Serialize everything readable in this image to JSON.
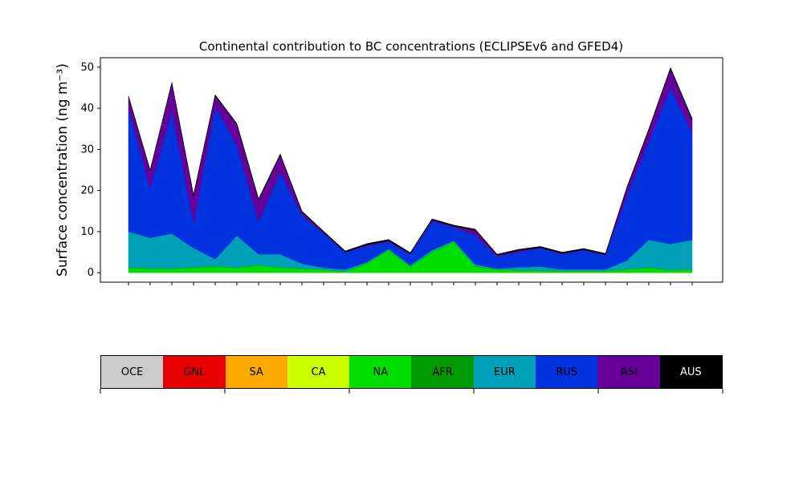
{
  "chart_data": {
    "type": "stacked_area",
    "title": "Continental contribution to BC concentrations (ECLIPSEv6 and GFED4)",
    "ylabel": "Surface concentration (ng m⁻³)",
    "categories": [
      null,
      null,
      null,
      null,
      null,
      null,
      null,
      null,
      null,
      null,
      null,
      null,
      null,
      null,
      null,
      null,
      null,
      null,
      null,
      null,
      null,
      null,
      null,
      null,
      null,
      null,
      null
    ],
    "ylim": [
      -2.3,
      52.3
    ],
    "yticks": [
      0,
      10,
      20,
      30,
      40,
      50
    ],
    "series": [
      {
        "name": "OCE",
        "color": "#cccccc",
        "values": [
          0,
          0,
          0,
          0,
          0,
          0,
          0,
          0,
          0,
          0,
          0,
          0,
          0,
          0,
          0,
          0,
          0,
          0,
          0,
          0,
          0,
          0,
          0,
          0,
          0,
          0,
          0
        ]
      },
      {
        "name": "GNL",
        "color": "#e60000",
        "values": [
          0,
          0,
          0,
          0,
          0,
          0,
          0,
          0,
          0,
          0,
          0,
          0,
          0,
          0,
          0,
          0,
          0,
          0,
          0,
          0,
          0,
          0,
          0,
          0,
          0,
          0,
          0
        ]
      },
      {
        "name": "SA",
        "color": "#ffaa00",
        "values": [
          0,
          0,
          0,
          0,
          0,
          0,
          0,
          0,
          0,
          0,
          0,
          0,
          0,
          0,
          0,
          0,
          0,
          0,
          0,
          0,
          0,
          0,
          0,
          0,
          0,
          0,
          0
        ]
      },
      {
        "name": "CA",
        "color": "#ccff00",
        "values": [
          0,
          0,
          0,
          0,
          0,
          0,
          0,
          0,
          0,
          0,
          0,
          0,
          0,
          0,
          0,
          0,
          0,
          0,
          0,
          0,
          0,
          0,
          0,
          0,
          0,
          0,
          0
        ]
      },
      {
        "name": "NA",
        "color": "#00dd00",
        "values": [
          1.2,
          1,
          1,
          1.2,
          1.5,
          1.2,
          1.8,
          1.2,
          1,
          0.7,
          0.3,
          2.3,
          5.5,
          1.5,
          5,
          7.5,
          1.5,
          0.8,
          0.6,
          0.5,
          0.4,
          0.4,
          0.4,
          0.8,
          1.2,
          0.6,
          0.7
        ]
      },
      {
        "name": "AFR",
        "color": "#009900",
        "values": [
          0.1,
          0.1,
          0.1,
          0.1,
          0.1,
          0.1,
          0.1,
          0.1,
          0.1,
          0.1,
          0.1,
          0.1,
          0.1,
          0.1,
          0.1,
          0.1,
          0.1,
          0.1,
          0.1,
          0.1,
          0.1,
          0.1,
          0.1,
          0.1,
          0.1,
          0.1,
          0.1
        ]
      },
      {
        "name": "EUR",
        "color": "#00a0b8",
        "values": [
          8.7,
          7.4,
          8.4,
          4.7,
          1.7,
          7.7,
          2.6,
          3.2,
          1.1,
          0.4,
          0.4,
          0.2,
          0.2,
          0.2,
          0.4,
          0.2,
          0.4,
          0.1,
          0.6,
          0.9,
          0.3,
          0.3,
          0.3,
          2.1,
          6.7,
          6.3,
          7.2
        ]
      },
      {
        "name": "RUS",
        "color": "#0033dd",
        "values": [
          30,
          12,
          30,
          6,
          37.2,
          22,
          8,
          20,
          11.8,
          8.3,
          4.2,
          3.9,
          1.7,
          2.7,
          7,
          3.3,
          7,
          3,
          3.7,
          4.5,
          3.7,
          4.7,
          3.5,
          16,
          24,
          38,
          26
        ]
      },
      {
        "name": "ASI",
        "color": "#660099",
        "values": [
          2.7,
          4.2,
          6.5,
          6.7,
          2.5,
          5,
          5.2,
          4.1,
          0.7,
          0.3,
          0,
          0.3,
          0.3,
          0.1,
          0.3,
          0.2,
          1.3,
          0.2,
          0.4,
          0.1,
          0.2,
          0.1,
          0.1,
          1.7,
          2.7,
          4.6,
          3.2
        ]
      },
      {
        "name": "AUS",
        "color": "#000000",
        "values": [
          0.3,
          0.3,
          0.3,
          0.3,
          0.3,
          0.3,
          0.3,
          0.3,
          0.3,
          0.3,
          0.3,
          0.3,
          0.3,
          0.3,
          0.3,
          0.3,
          0.3,
          0.3,
          0.3,
          0.3,
          0.3,
          0.3,
          0.3,
          0.3,
          0.3,
          0.3,
          0.3
        ]
      }
    ]
  }
}
